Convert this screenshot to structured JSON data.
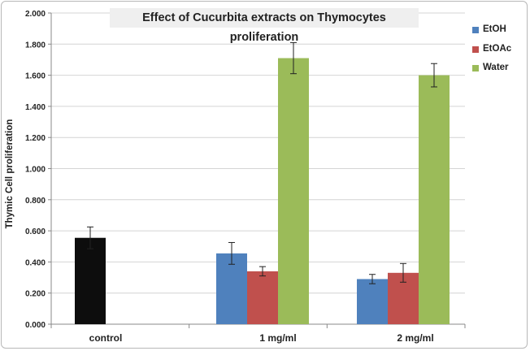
{
  "chart_data": {
    "type": "bar",
    "title": "Effect of Cucurbita extracts on Thymocytes proliferation",
    "xlabel": "",
    "ylabel": "Thymic Cell proliferation",
    "ylim": [
      0,
      2
    ],
    "yticks": [
      "0.000",
      "0.200",
      "0.400",
      "0.600",
      "0.800",
      "1.000",
      "1.200",
      "1.400",
      "1.600",
      "1.800",
      "2.000"
    ],
    "grid": true,
    "legend_position": "right",
    "categories": [
      "control",
      "1 mg/ml",
      "2 mg/ml"
    ],
    "control": {
      "value": 0.555,
      "error": 0.07,
      "color": "#0d0d0d"
    },
    "series": [
      {
        "name": "EtOH",
        "color": "#4f81bd",
        "values": [
          null,
          0.455,
          0.29
        ],
        "errors": [
          null,
          0.07,
          0.03
        ]
      },
      {
        "name": "EtOAc",
        "color": "#c0504d",
        "values": [
          null,
          0.34,
          0.33
        ],
        "errors": [
          null,
          0.03,
          0.06
        ]
      },
      {
        "name": "Water",
        "color": "#9bbb59",
        "values": [
          null,
          1.71,
          1.6
        ],
        "errors": [
          null,
          0.1,
          0.075
        ]
      }
    ]
  }
}
